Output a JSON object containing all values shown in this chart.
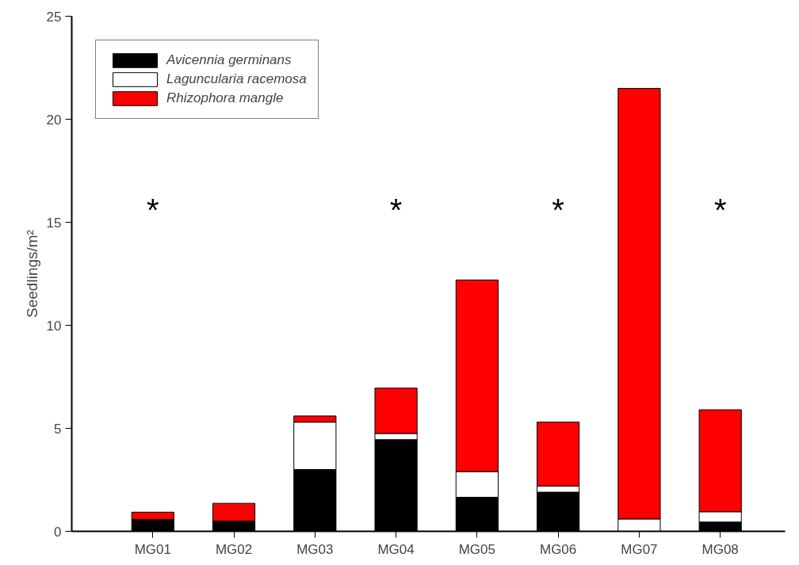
{
  "chart_data": {
    "type": "bar",
    "stacked": true,
    "ylabel": "Seedlings/m²",
    "categories": [
      "MG01",
      "MG02",
      "MG03",
      "MG04",
      "MG05",
      "MG06",
      "MG07",
      "MG08"
    ],
    "series": [
      {
        "name": "Avicennia germinans",
        "color": "#000000",
        "values": [
          0.58,
          0.5,
          3.0,
          4.45,
          1.65,
          1.9,
          0,
          0.45
        ]
      },
      {
        "name": "Laguncularia racemosa",
        "color": "#ffffff",
        "values": [
          0,
          0,
          2.3,
          0.3,
          1.25,
          0.3,
          0.6,
          0.5
        ]
      },
      {
        "name": "Rhizophora mangle",
        "color": "#ff0000",
        "values": [
          0.35,
          0.86,
          0.3,
          2.2,
          9.3,
          3.1,
          20.9,
          4.95
        ]
      }
    ],
    "ylim": [
      0,
      25
    ],
    "yticks": [
      0,
      5,
      10,
      15,
      20,
      25
    ],
    "grid": false,
    "legend": "top left",
    "annotations": [
      "*",
      "*",
      "*",
      "*"
    ]
  }
}
